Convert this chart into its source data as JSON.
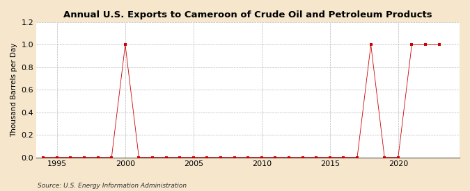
{
  "title": "Annual U.S. Exports to Cameroon of Crude Oil and Petroleum Products",
  "ylabel": "Thousand Barrels per Day",
  "source": "Source: U.S. Energy Information Administration",
  "bg_color": "#f5e6cc",
  "plot_bg_color": "#ffffff",
  "line_color": "#cc0000",
  "marker_color": "#cc0000",
  "grid_h_color": "#999999",
  "grid_v_color": "#999999",
  "xlim": [
    1993.5,
    2024.5
  ],
  "ylim": [
    0.0,
    1.2
  ],
  "xticks": [
    1995,
    2000,
    2005,
    2010,
    2015,
    2020
  ],
  "yticks": [
    0.0,
    0.2,
    0.4,
    0.6,
    0.8,
    1.0,
    1.2
  ],
  "years": [
    1994,
    1995,
    1996,
    1997,
    1998,
    1999,
    2000,
    2001,
    2002,
    2003,
    2004,
    2005,
    2006,
    2007,
    2008,
    2009,
    2010,
    2011,
    2012,
    2013,
    2014,
    2015,
    2016,
    2017,
    2018,
    2019,
    2020,
    2021,
    2022,
    2023
  ],
  "values": [
    0,
    0,
    0,
    0,
    0,
    0,
    1,
    0,
    0,
    0,
    0,
    0,
    0,
    0,
    0,
    0,
    0,
    0,
    0,
    0,
    0,
    0,
    0,
    0,
    1,
    0,
    0,
    1,
    1,
    1
  ]
}
